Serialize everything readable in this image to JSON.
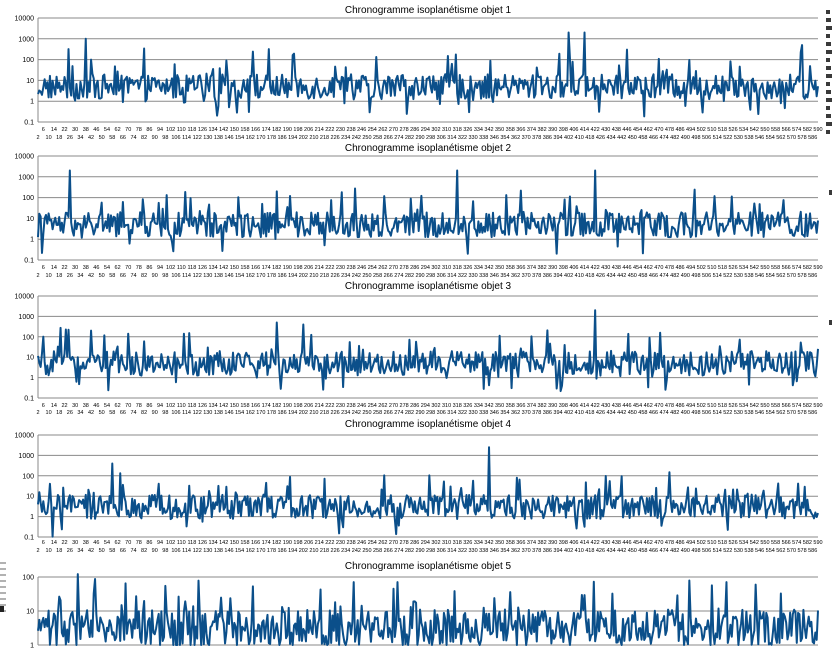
{
  "charts": [
    {
      "title": "Chronogramme isoplanétisme objet 1",
      "y_ticks": [
        "10000",
        "1000",
        "100",
        "10",
        "1",
        "0.1"
      ],
      "x_first": 2,
      "x_last": 590
    },
    {
      "title": "Chronogramme isoplanétisme objet 2",
      "y_ticks": [
        "10000",
        "1000",
        "100",
        "10",
        "1",
        "0.1"
      ],
      "x_first": 2,
      "x_last": 590
    },
    {
      "title": "Chronogramme isoplanétisme objet 3",
      "y_ticks": [
        "10000",
        "1000",
        "100",
        "10",
        "1",
        "0.1"
      ],
      "x_first": 2,
      "x_last": 590
    },
    {
      "title": "Chronogramme isoplanétisme objet 4",
      "y_ticks": [
        "10000",
        "1000",
        "100",
        "10",
        "1",
        "0.1"
      ],
      "x_first": 2,
      "x_last": 590
    },
    {
      "title": "Chronogramme isoplanétisme objet 5",
      "y_ticks": [
        "100",
        "10",
        "1"
      ],
      "x_first": null,
      "x_last": null
    }
  ],
  "chart_data": [
    {
      "type": "line",
      "title": "Chronogramme isoplanétisme objet 1",
      "y_scale": "log",
      "ylim": [
        0.1,
        10000
      ],
      "x_range": [
        2,
        590
      ],
      "peaks": [
        {
          "x": 38,
          "y": 1000
        },
        {
          "x": 402,
          "y": 2000
        },
        {
          "x": 414,
          "y": 2000
        },
        {
          "x": 446,
          "y": 300
        },
        {
          "x": 578,
          "y": 500
        }
      ],
      "baseline": 5,
      "series_color": "#0b4f8a"
    },
    {
      "type": "line",
      "title": "Chronogramme isoplanétisme objet 2",
      "y_scale": "log",
      "ylim": [
        0.1,
        10000
      ],
      "x_range": [
        2,
        590
      ],
      "peaks": [
        {
          "x": 26,
          "y": 2000
        },
        {
          "x": 318,
          "y": 2000
        },
        {
          "x": 422,
          "y": 2000
        },
        {
          "x": 182,
          "y": 200
        }
      ],
      "baseline": 5,
      "series_color": "#0b4f8a"
    },
    {
      "type": "line",
      "title": "Chronogramme isoplanétisme objet 3",
      "y_scale": "log",
      "ylim": [
        0.1,
        10000
      ],
      "x_range": [
        2,
        590
      ],
      "peaks": [
        {
          "x": 422,
          "y": 2000
        },
        {
          "x": 182,
          "y": 500
        },
        {
          "x": 202,
          "y": 400
        },
        {
          "x": 42,
          "y": 200
        }
      ],
      "baseline": 5,
      "series_color": "#0b4f8a"
    },
    {
      "type": "line",
      "title": "Chronogramme isoplanétisme objet 4",
      "y_scale": "log",
      "ylim": [
        0.1,
        10000
      ],
      "x_range": [
        2,
        590
      ],
      "peaks": [
        {
          "x": 342,
          "y": 2500
        },
        {
          "x": 58,
          "y": 400
        },
        {
          "x": 478,
          "y": 150
        }
      ],
      "baseline": 3,
      "series_color": "#0b4f8a"
    },
    {
      "type": "line",
      "title": "Chronogramme isoplanétisme objet 5",
      "y_scale": "log",
      "ylim": [
        0.5,
        100
      ],
      "x_range": [
        2,
        590
      ],
      "peaks": [
        {
          "x": 98,
          "y": 50
        },
        {
          "x": 270,
          "y": 40
        },
        {
          "x": 140,
          "y": 20
        }
      ],
      "baseline": 2,
      "series_color": "#0b4f8a"
    }
  ]
}
